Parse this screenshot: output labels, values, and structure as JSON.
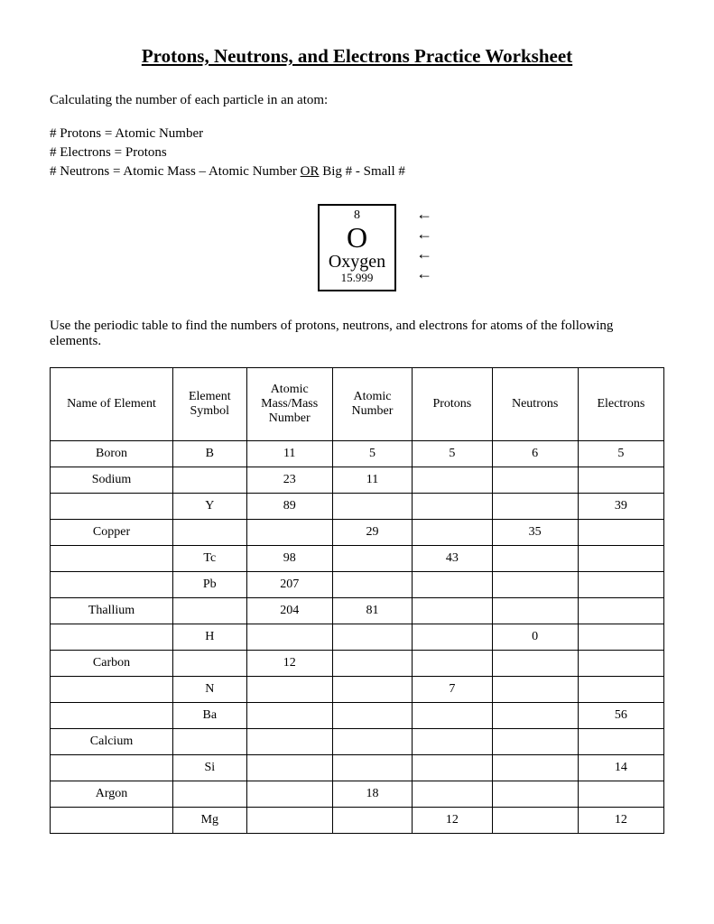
{
  "title": "Protons, Neutrons, and Electrons Practice Worksheet",
  "intro": "Calculating the number of each particle in an atom:",
  "rule1": "# Protons = Atomic Number",
  "rule2": "# Electrons = Protons",
  "rule3a": "# Neutrons = Atomic Mass – Atomic Number  ",
  "rule3_or": "OR",
  "rule3b": "   Big # - Small #",
  "element_tile": {
    "atomic_number": "8",
    "symbol": "O",
    "name": "Oxygen",
    "mass": "15.999"
  },
  "instructions": "Use the periodic table to find the numbers of protons, neutrons, and electrons for atoms of the following elements.",
  "columns": [
    "Name of Element",
    "Element Symbol",
    "Atomic Mass/Mass Number",
    "Atomic Number",
    "Protons",
    "Neutrons",
    "Electrons"
  ],
  "rows": [
    [
      "Boron",
      "B",
      "11",
      "5",
      "5",
      "6",
      "5"
    ],
    [
      "Sodium",
      "",
      "23",
      "11",
      "",
      "",
      ""
    ],
    [
      "",
      "Y",
      "89",
      "",
      "",
      "",
      "39"
    ],
    [
      "Copper",
      "",
      "",
      "29",
      "",
      "35",
      ""
    ],
    [
      "",
      "Tc",
      "98",
      "",
      "43",
      "",
      ""
    ],
    [
      "",
      "Pb",
      "207",
      "",
      "",
      "",
      ""
    ],
    [
      "Thallium",
      "",
      "204",
      "81",
      "",
      "",
      ""
    ],
    [
      "",
      "H",
      "",
      "",
      "",
      "0",
      ""
    ],
    [
      "Carbon",
      "",
      "12",
      "",
      "",
      "",
      ""
    ],
    [
      "",
      "N",
      "",
      "",
      "7",
      "",
      ""
    ],
    [
      "",
      "Ba",
      "",
      "",
      "",
      "",
      "56"
    ],
    [
      "Calcium",
      "",
      "",
      "",
      "",
      "",
      ""
    ],
    [
      "",
      "Si",
      "",
      "",
      "",
      "",
      "14"
    ],
    [
      "Argon",
      "",
      "",
      "18",
      "",
      "",
      ""
    ],
    [
      "",
      "Mg",
      "",
      "",
      "12",
      "",
      "12"
    ]
  ],
  "table_style": {
    "border_color": "#000000",
    "header_padding_v": 16,
    "cell_padding_v": 6,
    "font_size": 14
  }
}
